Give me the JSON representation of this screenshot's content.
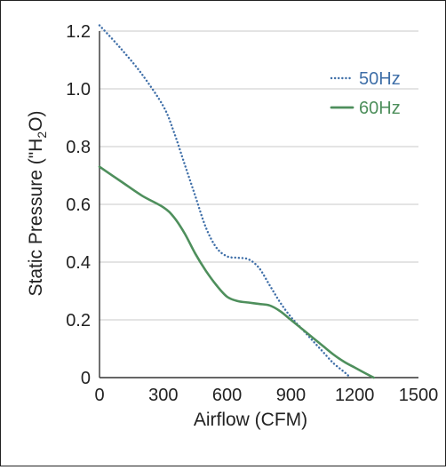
{
  "chart_data": {
    "type": "line",
    "title": "",
    "xlabel": "Airflow (CFM)",
    "ylabel": "Static Pressure (\"H₂O)",
    "xlim": [
      0,
      1500
    ],
    "ylim": [
      0,
      1.2
    ],
    "x_ticks": [
      0,
      300,
      600,
      900,
      1200,
      1500
    ],
    "x_tick_labels": [
      "0",
      "300",
      "600",
      "900",
      "1200",
      "1500"
    ],
    "y_ticks": [
      0,
      0.2,
      0.4,
      0.6,
      0.8,
      1.0,
      1.2
    ],
    "y_tick_labels": [
      "0",
      "0.2",
      "0.4",
      "0.6",
      "0.8",
      "1.0",
      "1.2"
    ],
    "grid": "horizontal",
    "legend_position": "top-right",
    "series": [
      {
        "name": "50Hz",
        "color": "#3f6fa8",
        "style": "dotted",
        "x": [
          0,
          100,
          200,
          300,
          350,
          400,
          450,
          500,
          550,
          600,
          650,
          700,
          750,
          800,
          850,
          900,
          950,
          1000,
          1050,
          1100,
          1150,
          1180
        ],
        "y": [
          1.22,
          1.14,
          1.05,
          0.94,
          0.85,
          0.74,
          0.63,
          0.52,
          0.45,
          0.42,
          0.415,
          0.41,
          0.38,
          0.32,
          0.26,
          0.21,
          0.17,
          0.13,
          0.09,
          0.05,
          0.02,
          0.0
        ]
      },
      {
        "name": "60Hz",
        "color": "#4e8f5c",
        "style": "solid",
        "x": [
          0,
          100,
          200,
          300,
          350,
          400,
          450,
          500,
          550,
          600,
          650,
          700,
          750,
          800,
          850,
          900,
          950,
          1000,
          1050,
          1100,
          1150,
          1200,
          1250,
          1290
        ],
        "y": [
          0.73,
          0.68,
          0.63,
          0.59,
          0.555,
          0.5,
          0.43,
          0.37,
          0.32,
          0.28,
          0.265,
          0.26,
          0.255,
          0.25,
          0.23,
          0.2,
          0.17,
          0.14,
          0.11,
          0.08,
          0.055,
          0.035,
          0.015,
          0.0
        ]
      }
    ]
  }
}
